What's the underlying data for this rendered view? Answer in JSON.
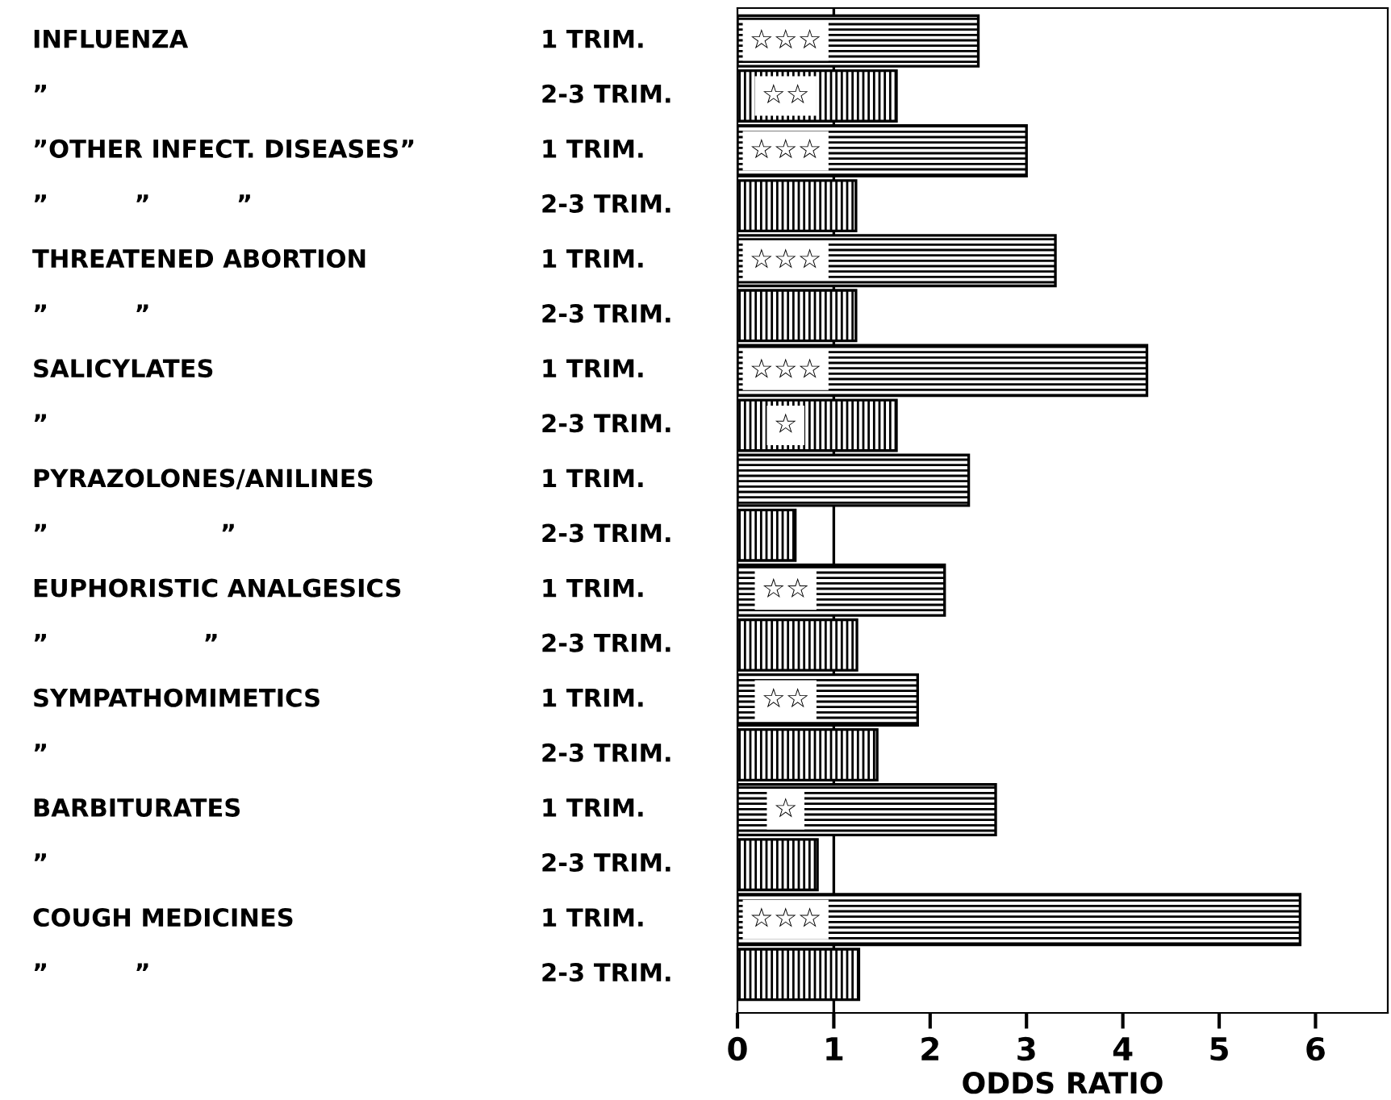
{
  "chart_data": {
    "type": "bar",
    "orientation": "horizontal",
    "xlabel": "ODDS RATIO",
    "categories": [
      "INFLUENZA\t1 TRIM.",
      "”\t2-3 TRIM.",
      "”OTHER INFECT. DISEASES”\t1 TRIM.",
      "”          ”          ”\t2-3 TRIM.",
      "THREATENED ABORTION\t1 TRIM.",
      "”          ”\t2-3 TRIM.",
      "SALICYLATES\t1 TRIM.",
      "”\t2-3 TRIM.",
      "PYRAZOLONES/ANILINES\t1 TRIM.",
      "”                    ”\t2-3 TRIM.",
      "EUPHORISTIC ANALGESICS\t1 TRIM.",
      "”                  ”\t2-3 TRIM.",
      "SYMPATHOMIMETICS\t1 TRIM.",
      "”\t2-3 TRIM.",
      "BARBITURATES\t1 TRIM.",
      "”\t2-3 TRIM.",
      "COUGH MEDICINES\t1 TRIM.",
      "”          ”\t2-3 TRIM."
    ],
    "values": [
      2.5,
      1.65,
      3.0,
      1.23,
      3.3,
      1.23,
      4.25,
      1.65,
      2.4,
      0.6,
      2.15,
      1.24,
      1.87,
      1.45,
      2.68,
      0.83,
      5.84,
      1.26
    ],
    "value_labels": [
      "☆☆☆",
      "☆☆",
      "☆☆☆",
      null,
      "☆☆☆",
      null,
      "☆☆☆",
      "☆",
      null,
      null,
      "☆☆",
      null,
      "☆☆",
      null,
      "☆",
      null,
      "☆☆☆",
      null
    ],
    "color": "#000000",
    "xlim": [
      0,
      6.75
    ],
    "xticks": [
      0,
      1,
      2,
      3,
      4,
      5,
      6
    ],
    "ref_lines": [
      {
        "axis": "x",
        "value": 1
      }
    ],
    "grid": false,
    "legend": false
  }
}
